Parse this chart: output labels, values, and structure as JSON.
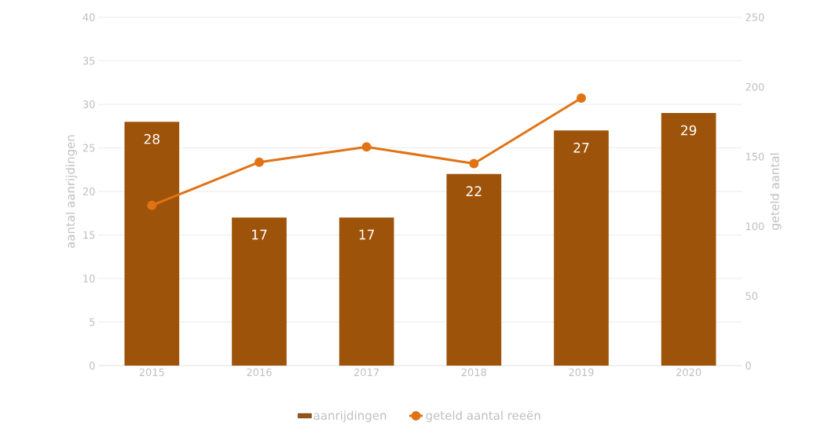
{
  "chart_data": {
    "type": "bar",
    "categories": [
      "2015",
      "2016",
      "2017",
      "2018",
      "2019",
      "2020"
    ],
    "ylabel": "aantal aanrijdingen",
    "y2label": "geteld aantal",
    "ylim": [
      0,
      40
    ],
    "yticks": [
      0,
      5,
      10,
      15,
      20,
      25,
      30,
      35,
      40
    ],
    "y2lim": [
      0,
      250
    ],
    "y2ticks": [
      0,
      50,
      100,
      150,
      200,
      250
    ],
    "grid": "y",
    "legend": "bottom",
    "series": [
      {
        "name": "aanrijdingen",
        "color": "#9e530b",
        "values": [
          28,
          17,
          17,
          22,
          27,
          29
        ],
        "value_labels": [
          "28",
          "17",
          "17",
          "22",
          "27",
          "29"
        ]
      },
      {
        "name": "geteld aantal reeën",
        "type": "line",
        "axis": "y2",
        "color": "#e07316",
        "marker": "circle",
        "values": [
          115,
          146,
          157,
          145,
          192,
          null
        ]
      }
    ]
  }
}
